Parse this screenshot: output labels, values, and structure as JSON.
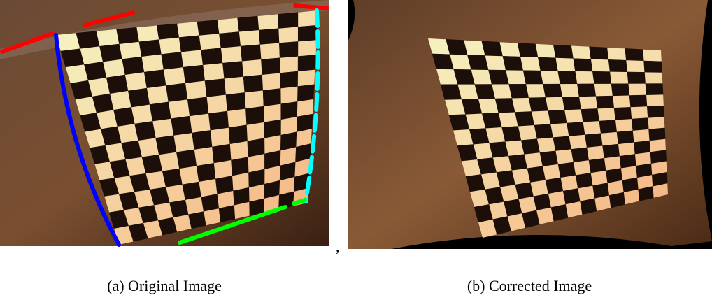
{
  "figure": {
    "panels": [
      {
        "caption": "(a) Original Image"
      },
      {
        "caption": "(b) Corrected Image"
      }
    ],
    "separator": ","
  }
}
